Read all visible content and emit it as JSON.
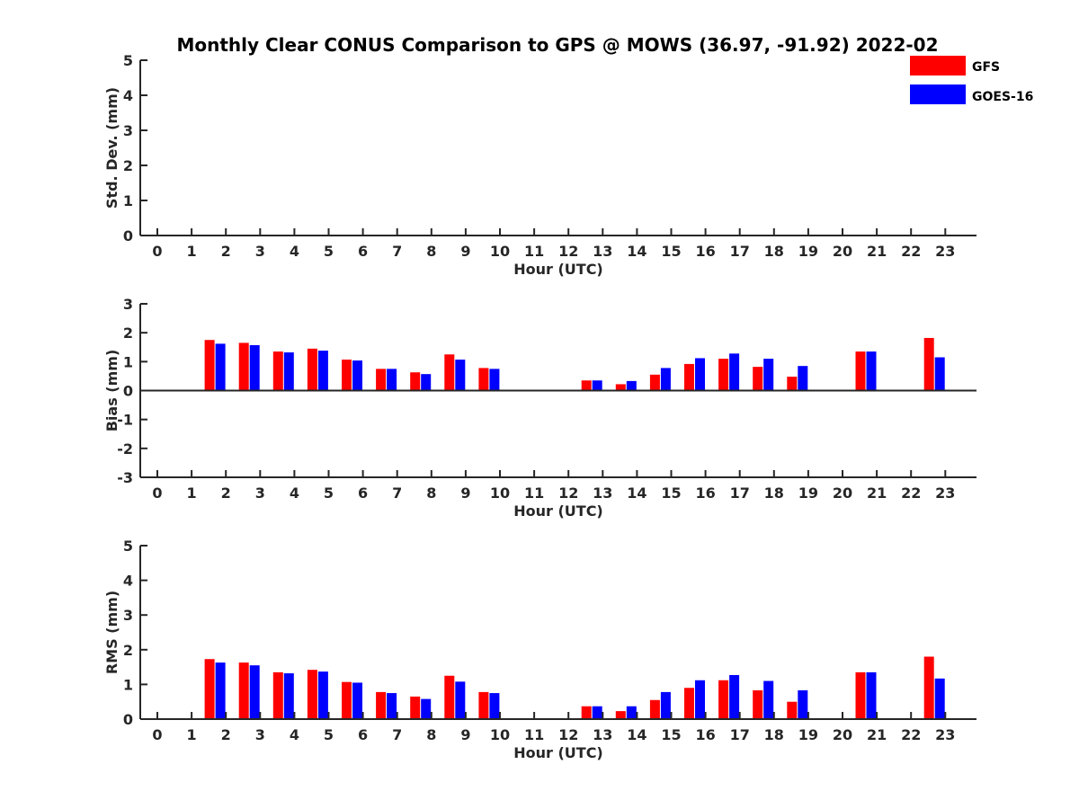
{
  "title": "Monthly Clear CONUS Comparison to GPS @ MOWS (36.97, -91.92) 2022-02",
  "legend": [
    {
      "name": "GFS",
      "color": "#ff0000"
    },
    {
      "name": "GOES-16",
      "color": "#0000ff"
    }
  ],
  "chart_data": [
    {
      "type": "bar",
      "xlabel": "Hour (UTC)",
      "ylabel": "Std. Dev. (mm)",
      "categories": [
        0,
        1,
        2,
        3,
        4,
        5,
        6,
        7,
        8,
        9,
        10,
        11,
        12,
        13,
        14,
        15,
        16,
        17,
        18,
        19,
        20,
        21,
        22,
        23
      ],
      "ylim": [
        0,
        5
      ],
      "yticks": [
        0,
        1,
        2,
        3,
        4,
        5
      ],
      "series": [
        {
          "name": "GFS",
          "color": "#ff0000",
          "values": [
            null,
            null,
            null,
            null,
            null,
            null,
            null,
            null,
            null,
            null,
            null,
            null,
            null,
            null,
            null,
            null,
            null,
            null,
            null,
            null,
            null,
            null,
            null,
            null
          ]
        },
        {
          "name": "GOES-16",
          "color": "#0000ff",
          "values": [
            null,
            null,
            null,
            null,
            null,
            null,
            null,
            null,
            null,
            null,
            null,
            null,
            null,
            null,
            null,
            null,
            null,
            null,
            null,
            null,
            null,
            null,
            null,
            null
          ]
        }
      ]
    },
    {
      "type": "bar",
      "xlabel": "Hour (UTC)",
      "ylabel": "Bias (mm)",
      "categories": [
        0,
        1,
        2,
        3,
        4,
        5,
        6,
        7,
        8,
        9,
        10,
        11,
        12,
        13,
        14,
        15,
        16,
        17,
        18,
        19,
        20,
        21,
        22,
        23
      ],
      "ylim": [
        -3,
        3
      ],
      "yticks": [
        -3,
        -2,
        -1,
        0,
        1,
        2,
        3
      ],
      "series": [
        {
          "name": "GFS",
          "color": "#ff0000",
          "values": [
            null,
            1.75,
            1.65,
            1.35,
            1.45,
            1.07,
            0.75,
            0.63,
            1.25,
            0.78,
            null,
            null,
            0.35,
            0.22,
            0.55,
            0.92,
            1.1,
            0.82,
            0.48,
            null,
            1.35,
            null,
            1.82,
            null
          ]
        },
        {
          "name": "GOES-16",
          "color": "#0000ff",
          "values": [
            null,
            1.62,
            1.57,
            1.32,
            1.38,
            1.04,
            0.75,
            0.57,
            1.07,
            0.75,
            null,
            null,
            0.35,
            0.33,
            0.78,
            1.12,
            1.28,
            1.1,
            0.85,
            null,
            1.35,
            null,
            1.15,
            null
          ]
        }
      ]
    },
    {
      "type": "bar",
      "xlabel": "Hour (UTC)",
      "ylabel": "RMS (mm)",
      "categories": [
        0,
        1,
        2,
        3,
        4,
        5,
        6,
        7,
        8,
        9,
        10,
        11,
        12,
        13,
        14,
        15,
        16,
        17,
        18,
        19,
        20,
        21,
        22,
        23
      ],
      "ylim": [
        0,
        5
      ],
      "yticks": [
        0,
        1,
        2,
        3,
        4,
        5
      ],
      "series": [
        {
          "name": "GFS",
          "color": "#ff0000",
          "values": [
            null,
            1.73,
            1.63,
            1.35,
            1.42,
            1.07,
            0.78,
            0.65,
            1.25,
            0.78,
            null,
            null,
            0.37,
            0.23,
            0.55,
            0.9,
            1.12,
            0.83,
            0.5,
            null,
            1.35,
            null,
            1.8,
            null
          ]
        },
        {
          "name": "GOES-16",
          "color": "#0000ff",
          "values": [
            null,
            1.63,
            1.55,
            1.32,
            1.37,
            1.05,
            0.75,
            0.58,
            1.08,
            0.75,
            null,
            null,
            0.37,
            0.37,
            0.78,
            1.12,
            1.27,
            1.1,
            0.83,
            null,
            1.35,
            null,
            1.17,
            null
          ]
        }
      ]
    }
  ]
}
